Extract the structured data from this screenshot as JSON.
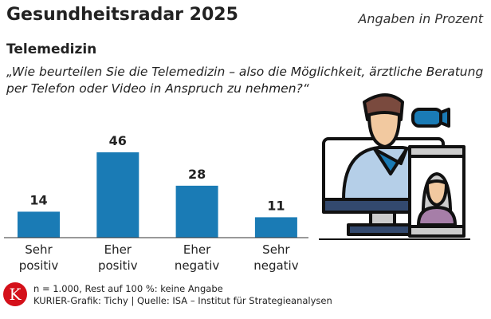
{
  "header": {
    "title": "Gesundheitsradar 2025",
    "unit_note": "Angaben in Prozent",
    "subtitle": "Telemedizin",
    "question": "„Wie beurteilen Sie die Telemedizin – also die Möglichkeit, ärztliche Beratung per Telefon oder Video in Anspruch zu nehmen?“"
  },
  "chart_data": {
    "type": "bar",
    "categories": [
      [
        "Sehr",
        "positiv"
      ],
      [
        "Eher",
        "positiv"
      ],
      [
        "Eher",
        "negativ"
      ],
      [
        "Sehr",
        "negativ"
      ]
    ],
    "values": [
      14,
      46,
      28,
      11
    ],
    "ylim": [
      0,
      50
    ],
    "grid": false,
    "bar_color": "#1a7bb5"
  },
  "illustration": {
    "icon": "doctor-video-call-icon"
  },
  "footer": {
    "logo_letter": "K",
    "note": "n = 1.000, Rest auf 100 %: keine Angabe",
    "source": "KURIER-Grafik: Tichy | Quelle: ISA – Institut für Strategieanalysen",
    "logo_color": "#d4101a"
  }
}
